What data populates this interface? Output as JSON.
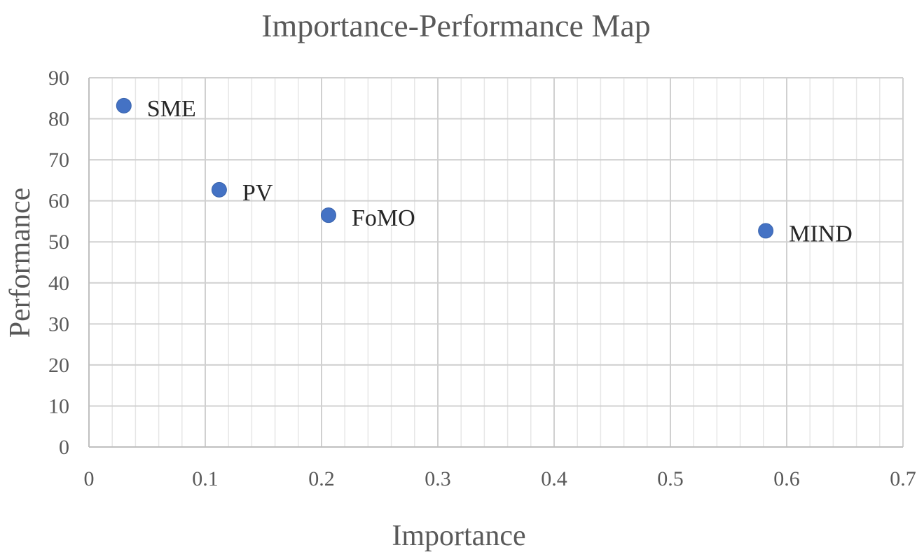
{
  "chart_data": {
    "type": "scatter",
    "title": "Importance-Performance Map",
    "xlabel": "Importance",
    "ylabel": "Performance",
    "xlim": [
      0,
      0.7
    ],
    "ylim": [
      0,
      90
    ],
    "x_ticks": [
      0,
      0.1,
      0.2,
      0.3,
      0.4,
      0.5,
      0.6,
      0.7
    ],
    "x_tick_labels": [
      "0",
      "0.1",
      "0.2",
      "0.3",
      "0.4",
      "0.5",
      "0.6",
      "0.7"
    ],
    "y_ticks": [
      0,
      10,
      20,
      30,
      40,
      50,
      60,
      70,
      80,
      90
    ],
    "y_tick_labels": [
      "0",
      "10",
      "20",
      "30",
      "40",
      "50",
      "60",
      "70",
      "80",
      "90"
    ],
    "major_grid": true,
    "minor_grid": true,
    "x_minor_step": 0.02,
    "y_minor_step": 10,
    "legend": false,
    "marker_color": "#4472C4",
    "grid_major_color": "#d0d0d0",
    "grid_minor_color": "#e6e6e6",
    "series": [
      {
        "points": [
          {
            "label": "SME",
            "x": 0.03,
            "y": 83.2
          },
          {
            "label": "PV",
            "x": 0.112,
            "y": 62.7
          },
          {
            "label": "FoMO",
            "x": 0.206,
            "y": 56.5
          },
          {
            "label": "MIND",
            "x": 0.582,
            "y": 52.7
          }
        ]
      }
    ]
  }
}
